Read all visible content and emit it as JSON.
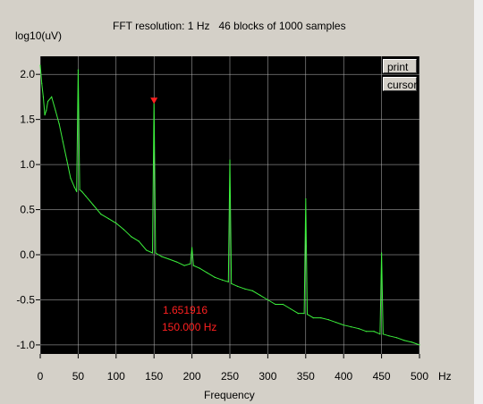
{
  "header": {
    "title": "FFT resolution: 1 Hz   46 blocks of 1000 samples"
  },
  "buttons": {
    "print": "print",
    "cursor": "cursor"
  },
  "cursor_readout": {
    "value": "1.651916",
    "frequency": "150.000 Hz"
  },
  "colors": {
    "plot_background": "#000000",
    "trace": "#3cf03c",
    "grid": "#c0c0c0",
    "cursor_marker": "#ff2020"
  },
  "chart_data": {
    "type": "line",
    "xlabel": "Frequency",
    "x_unit": "Hz",
    "ylabel": "log10(uV)",
    "xlim": [
      0,
      500
    ],
    "ylim": [
      -1.1,
      2.2
    ],
    "x_ticks": [
      0,
      50,
      100,
      150,
      200,
      250,
      300,
      350,
      400,
      450,
      500
    ],
    "x_tick_labels": [
      "0",
      "50",
      "100",
      "150",
      "200",
      "250",
      "300",
      "350",
      "400",
      "450",
      "500"
    ],
    "y_ticks": [
      2.0,
      1.5,
      1.0,
      0.5,
      0.0,
      -0.5,
      -1.0
    ],
    "y_tick_labels": [
      "2.0",
      "1.5",
      "1.0",
      "0.5",
      "0.0",
      "-0.5",
      "-1.0"
    ],
    "grid": true,
    "cursor": {
      "x": 150,
      "y": 1.651916,
      "marker": "triangle-down"
    },
    "series": [
      {
        "x": [
          0,
          2,
          4,
          6,
          8,
          10,
          15,
          20,
          25,
          30,
          35,
          40,
          45,
          48,
          50,
          52,
          55,
          60,
          70,
          80,
          90,
          100,
          110,
          120,
          130,
          140,
          148,
          150,
          152,
          160,
          170,
          180,
          190,
          198,
          200,
          202,
          210,
          220,
          230,
          240,
          248,
          250,
          252,
          260,
          270,
          280,
          290,
          300,
          310,
          320,
          330,
          340,
          348,
          350,
          352,
          360,
          370,
          380,
          390,
          400,
          410,
          420,
          430,
          440,
          448,
          450,
          452,
          460,
          470,
          480,
          490,
          500
        ],
        "y": [
          2.1,
          1.9,
          1.75,
          1.55,
          1.6,
          1.7,
          1.75,
          1.6,
          1.45,
          1.25,
          1.05,
          0.85,
          0.75,
          0.7,
          2.05,
          0.72,
          0.7,
          0.65,
          0.55,
          0.45,
          0.4,
          0.35,
          0.28,
          0.2,
          0.15,
          0.05,
          0.02,
          1.72,
          0.02,
          -0.02,
          -0.05,
          -0.08,
          -0.12,
          -0.1,
          0.08,
          -0.12,
          -0.15,
          -0.2,
          -0.25,
          -0.28,
          -0.3,
          1.05,
          -0.32,
          -0.35,
          -0.38,
          -0.4,
          -0.45,
          -0.5,
          -0.55,
          -0.55,
          -0.6,
          -0.65,
          -0.65,
          0.62,
          -0.66,
          -0.7,
          -0.7,
          -0.72,
          -0.75,
          -0.78,
          -0.8,
          -0.82,
          -0.85,
          -0.85,
          -0.88,
          0.02,
          -0.88,
          -0.9,
          -0.92,
          -0.95,
          -0.97,
          -1.0
        ]
      }
    ]
  }
}
